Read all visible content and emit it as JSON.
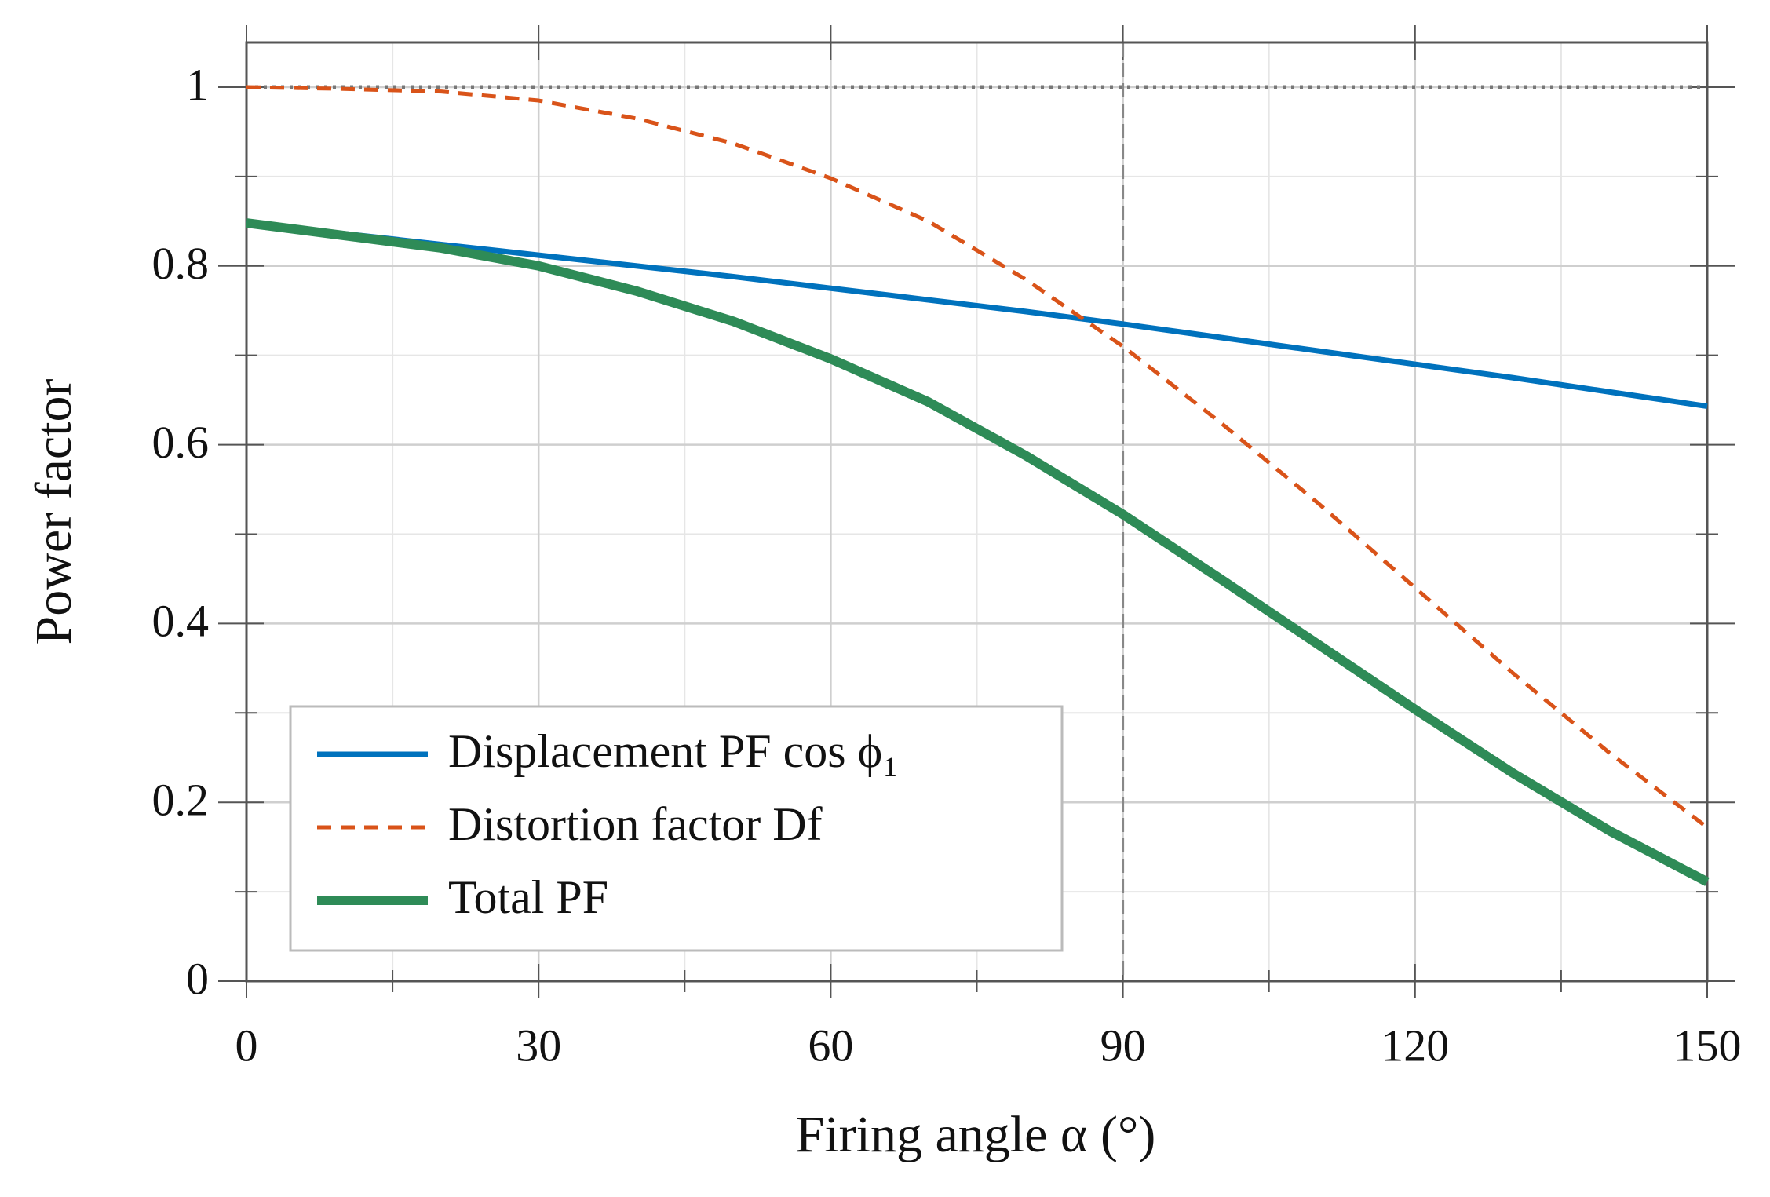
{
  "chart_data": {
    "type": "line",
    "x_label": "Firing angle α (°)",
    "y_label": "Power factor",
    "x": [
      0,
      10,
      20,
      30,
      40,
      50,
      60,
      70,
      80,
      90,
      100,
      110,
      120,
      130,
      140,
      150
    ],
    "series": [
      {
        "name": "Displacement PF cos ϕ₁",
        "color": "#0072bd",
        "style": "solid",
        "values": [
          0.848,
          0.836,
          0.824,
          0.812,
          0.8,
          0.788,
          0.775,
          0.762,
          0.749,
          0.735,
          0.72,
          0.705,
          0.69,
          0.675,
          0.659,
          0.643
        ]
      },
      {
        "name": "Distortion factor Df",
        "color": "#d95319",
        "style": "dashed",
        "values": [
          1,
          0.998,
          0.995,
          0.985,
          0.965,
          0.937,
          0.898,
          0.85,
          0.785,
          0.71,
          0.625,
          0.535,
          0.44,
          0.345,
          0.255,
          0.172
        ]
      },
      {
        "name": "Total PF",
        "color": "#2e8b57",
        "style": "solid",
        "values": [
          0.848,
          0.834,
          0.82,
          0.8,
          0.772,
          0.738,
          0.696,
          0.648,
          0.588,
          0.522,
          0.45,
          0.377,
          0.304,
          0.233,
          0.168,
          0.111
        ]
      }
    ],
    "xlim": [
      0,
      150
    ],
    "ylim": [
      0,
      1.05
    ],
    "xticks": [
      0,
      30,
      60,
      90,
      120,
      150
    ],
    "yticks": [
      0,
      0.2,
      0.4,
      0.6,
      0.8,
      1
    ],
    "xminor": [
      15,
      45,
      75,
      105,
      135
    ],
    "yminor": [
      0.1,
      0.3,
      0.5,
      0.7,
      0.9
    ],
    "reference_lines": {
      "y": 1,
      "x": 90
    },
    "grid": true,
    "legend": "lower left"
  }
}
